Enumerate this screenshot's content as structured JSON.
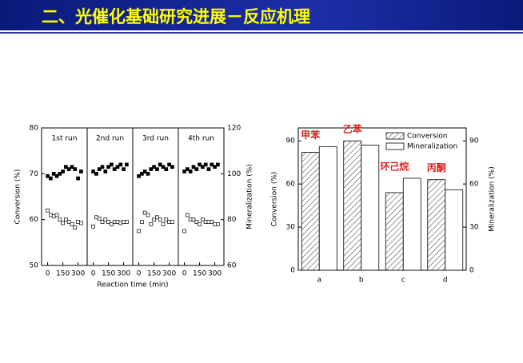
{
  "header": {
    "title": "二、光催化基础研究进展－反应机理"
  },
  "chart_data": [
    {
      "type": "scatter",
      "xlabel": "Reaction time (min)",
      "ylabel": "Conversion (%)",
      "y2label": "Mineralization (%)",
      "ylim": [
        50,
        80
      ],
      "yticks": [
        50,
        60,
        70,
        80
      ],
      "y2lim": [
        60,
        120
      ],
      "y2ticks": [
        60,
        80,
        100,
        120
      ],
      "xlim": [
        -60,
        390
      ],
      "xticks": [
        0,
        150,
        300
      ],
      "panels": [
        {
          "title": "1st run",
          "x": [
            0,
            30,
            60,
            90,
            120,
            150,
            180,
            210,
            240,
            270,
            300,
            330
          ],
          "series": [
            {
              "marker": "filled",
              "color": "#000000",
              "values": [
                69.5,
                69,
                70,
                69.5,
                70,
                70.5,
                71.5,
                71,
                71.5,
                71,
                69,
                70.5
              ]
            },
            {
              "marker": "open",
              "axis": "y2",
              "color": "#000000",
              "values": [
                84,
                82,
                81.5,
                82,
                80,
                78.5,
                80,
                79,
                78,
                76.5,
                79,
                78.5
              ]
            }
          ]
        },
        {
          "title": "2nd run",
          "x": [
            0,
            30,
            60,
            90,
            120,
            150,
            180,
            210,
            240,
            270,
            300,
            330
          ],
          "series": [
            {
              "marker": "filled",
              "color": "#000000",
              "values": [
                70.5,
                70,
                71,
                71.5,
                70.5,
                71.5,
                72,
                71,
                71.5,
                72,
                71,
                72
              ]
            },
            {
              "marker": "open",
              "axis": "y2",
              "color": "#000000",
              "values": [
                77,
                81,
                80.5,
                79,
                80,
                79,
                78,
                79,
                79,
                78.5,
                79,
                79
              ]
            }
          ]
        },
        {
          "title": "3rd run",
          "x": [
            0,
            30,
            60,
            90,
            120,
            150,
            180,
            210,
            240,
            270,
            300,
            330
          ],
          "series": [
            {
              "marker": "filled",
              "color": "#000000",
              "values": [
                69.5,
                70,
                70.5,
                70,
                71,
                71.5,
                71,
                72,
                71.5,
                71,
                72,
                71.5
              ]
            },
            {
              "marker": "open",
              "axis": "y2",
              "color": "#000000",
              "values": [
                75,
                79,
                83,
                82,
                78,
                80,
                81,
                80,
                78,
                80,
                79,
                79
              ]
            }
          ]
        },
        {
          "title": "4th run",
          "x": [
            0,
            30,
            60,
            90,
            120,
            150,
            180,
            210,
            240,
            270,
            300,
            330
          ],
          "series": [
            {
              "marker": "filled",
              "color": "#000000",
              "values": [
                70.5,
                71,
                70.5,
                71.5,
                71,
                72,
                71.5,
                72,
                71,
                72,
                71.5,
                72
              ]
            },
            {
              "marker": "open",
              "axis": "y2",
              "color": "#000000",
              "values": [
                75,
                82,
                80,
                80,
                79,
                78,
                80,
                79,
                79,
                79,
                78,
                78
              ]
            }
          ]
        }
      ]
    },
    {
      "type": "bar",
      "categories": [
        "a",
        "b",
        "c",
        "d"
      ],
      "ylabel": "Conversion (%)",
      "y2label": "Mineralization (%)",
      "ylim": [
        0,
        99
      ],
      "yticks": [
        0,
        30,
        60,
        90
      ],
      "y2lim": [
        0,
        99
      ],
      "y2ticks": [
        0,
        30,
        60,
        90
      ],
      "series": [
        {
          "name": "Conversion",
          "color": "#ffffff",
          "hatch": true,
          "values": [
            82,
            90,
            54,
            63
          ]
        },
        {
          "name": "Mineralization",
          "color": "#ffffff",
          "values": [
            86,
            87,
            64,
            56
          ]
        }
      ],
      "annotations": [
        "甲苯",
        "乙苯",
        "环己烷",
        "丙酮"
      ],
      "annotation_color": "#e02020"
    }
  ]
}
